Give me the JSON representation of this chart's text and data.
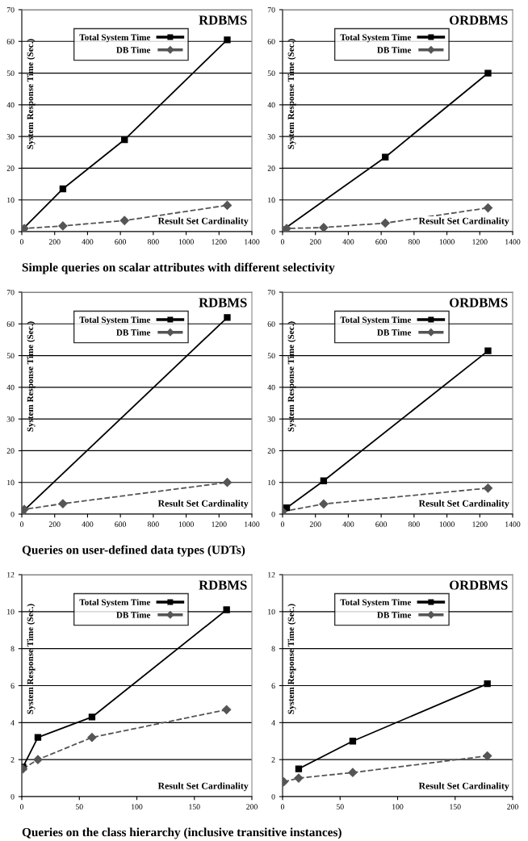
{
  "chart_data": [
    {
      "type": "line",
      "title": "RDBMS",
      "xlabel": "Result Set Cardinality",
      "ylabel": "System Response Time (Sec.)",
      "xlim": [
        0,
        1400
      ],
      "xticks": [
        0,
        200,
        400,
        600,
        800,
        1000,
        1200,
        1400
      ],
      "ylim": [
        0,
        70
      ],
      "yticks": [
        0,
        10,
        20,
        30,
        40,
        50,
        60,
        70
      ],
      "grid": "y",
      "legend": "top",
      "annotations": [
        "Simple queries on scalar attributes with different selectivity"
      ],
      "series": [
        {
          "name": "Total System Time",
          "color": "#000000",
          "line_style": "solid",
          "marker": "square",
          "x": [
            0,
            250,
            625,
            1250
          ],
          "values": [
            0.5,
            13.5,
            29,
            60.5
          ]
        },
        {
          "name": "DB Time",
          "color": "#555555",
          "line_style": "dashed",
          "marker": "diamond",
          "x": [
            0,
            15,
            250,
            625,
            1250
          ],
          "values": [
            0.5,
            1,
            1.8,
            3.5,
            8.3
          ]
        }
      ]
    },
    {
      "type": "line",
      "title": "ORDBMS",
      "xlabel": "Result Set Cardinality",
      "ylabel": "System Response Time (Sec.)",
      "xlim": [
        0,
        1400
      ],
      "xticks": [
        0,
        200,
        400,
        600,
        800,
        1000,
        1200,
        1400
      ],
      "ylim": [
        0,
        70
      ],
      "yticks": [
        0,
        10,
        20,
        30,
        40,
        50,
        60,
        70
      ],
      "grid": "y",
      "legend": "top",
      "series": [
        {
          "name": "Total System Time",
          "color": "#000000",
          "line_style": "solid",
          "marker": "square",
          "x": [
            0,
            625,
            1250
          ],
          "values": [
            0.5,
            23.5,
            50
          ]
        },
        {
          "name": "DB Time",
          "color": "#555555",
          "line_style": "dashed",
          "marker": "diamond",
          "x": [
            0,
            25,
            250,
            625,
            1250
          ],
          "values": [
            0.5,
            1,
            1.3,
            2.7,
            7.5
          ]
        }
      ]
    },
    {
      "type": "line",
      "title": "RDBMS",
      "xlabel": "Result Set Cardinality",
      "ylabel": "System Response Time (Sec.)",
      "xlim": [
        0,
        1400
      ],
      "xticks": [
        0,
        200,
        400,
        600,
        800,
        1000,
        1200,
        1400
      ],
      "ylim": [
        0,
        70
      ],
      "yticks": [
        0,
        10,
        20,
        30,
        40,
        50,
        60,
        70
      ],
      "grid": "y",
      "legend": "top",
      "annotations": [
        "Queries on user-defined data types (UDTs)"
      ],
      "series": [
        {
          "name": "Total System Time",
          "color": "#000000",
          "line_style": "solid",
          "marker": "square",
          "x": [
            0,
            1250
          ],
          "values": [
            0.5,
            62
          ]
        },
        {
          "name": "DB Time",
          "color": "#555555",
          "line_style": "dashed",
          "marker": "diamond",
          "x": [
            0,
            15,
            250,
            1250
          ],
          "values": [
            0.5,
            1.5,
            3.3,
            10
          ]
        }
      ]
    },
    {
      "type": "line",
      "title": "ORDBMS",
      "xlabel": "Result Set Cardinality",
      "ylabel": "System Response Time (Sec.)",
      "xlim": [
        0,
        1400
      ],
      "xticks": [
        0,
        200,
        400,
        600,
        800,
        1000,
        1200,
        1400
      ],
      "ylim": [
        0,
        70
      ],
      "yticks": [
        0,
        10,
        20,
        30,
        40,
        50,
        60,
        70
      ],
      "grid": "y",
      "legend": "top",
      "series": [
        {
          "name": "Total System Time",
          "color": "#000000",
          "line_style": "solid",
          "marker": "square",
          "x": [
            25,
            250,
            1250
          ],
          "values": [
            2,
            10.5,
            51.5
          ]
        },
        {
          "name": "DB Time",
          "color": "#555555",
          "line_style": "dashed",
          "marker": "diamond",
          "x": [
            0,
            250,
            1250
          ],
          "values": [
            0.8,
            3.2,
            8.2
          ]
        }
      ]
    },
    {
      "type": "line",
      "title": "RDBMS",
      "xlabel": "Result Set Cardinality",
      "ylabel": "System Response Time (Sec.)",
      "xlim": [
        0,
        200
      ],
      "xticks": [
        0,
        50,
        100,
        150,
        200
      ],
      "ylim": [
        0,
        12
      ],
      "yticks": [
        0,
        2,
        4,
        6,
        8,
        10,
        12
      ],
      "grid": "y",
      "legend": "top",
      "annotations": [
        "Queries on the class hierarchy (inclusive transitive instances)"
      ],
      "series": [
        {
          "name": "Total System Time",
          "color": "#000000",
          "line_style": "solid",
          "marker": "square",
          "x": [
            1,
            14,
            61,
            178
          ],
          "values": [
            1.6,
            3.2,
            4.3,
            10.1
          ]
        },
        {
          "name": "DB Time",
          "color": "#555555",
          "line_style": "dashed",
          "marker": "diamond",
          "x": [
            1,
            14,
            61,
            178
          ],
          "values": [
            1.5,
            2,
            3.2,
            4.7
          ]
        }
      ]
    },
    {
      "type": "line",
      "title": "ORDBMS",
      "xlabel": "Result Set Cardinality",
      "ylabel": "System Response Time (Sec.)",
      "xlim": [
        0,
        200
      ],
      "xticks": [
        0,
        50,
        100,
        150,
        200
      ],
      "ylim": [
        0,
        12
      ],
      "yticks": [
        0,
        2,
        4,
        6,
        8,
        10,
        12
      ],
      "grid": "y",
      "legend": "top",
      "series": [
        {
          "name": "Total System Time",
          "color": "#000000",
          "line_style": "solid",
          "marker": "square",
          "x": [
            14,
            61,
            178
          ],
          "values": [
            1.5,
            3,
            6.1
          ]
        },
        {
          "name": "DB Time",
          "color": "#555555",
          "line_style": "dashed",
          "marker": "diamond",
          "x": [
            1,
            14,
            61,
            178
          ],
          "values": [
            0.8,
            1,
            1.3,
            2.2
          ]
        }
      ]
    }
  ]
}
